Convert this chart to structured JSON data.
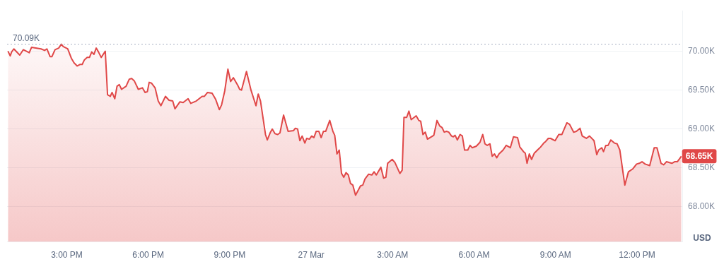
{
  "chart_data": {
    "type": "area",
    "ylabel": "USD",
    "xlim": [
      "--03-26T12:48",
      "--03-27T13:40"
    ],
    "ylim": [
      67.55,
      70.52
    ],
    "xticks": [
      {
        "value": "--03-26T15:00",
        "label": "3:00 PM"
      },
      {
        "value": "--03-26T18:00",
        "label": "6:00 PM"
      },
      {
        "value": "--03-26T21:00",
        "label": "9:00 PM"
      },
      {
        "value": "--03-27T00:00",
        "label": "27 Mar"
      },
      {
        "value": "--03-27T03:00",
        "label": "3:00 AM"
      },
      {
        "value": "--03-27T06:00",
        "label": "6:00 AM"
      },
      {
        "value": "--03-27T09:00",
        "label": "9:00 AM"
      },
      {
        "value": "--03-27T12:00",
        "label": "12:00 PM"
      }
    ],
    "yticks": [
      {
        "value": 68,
        "label": "68.00K"
      },
      {
        "value": 68.5,
        "label": "68.50K"
      },
      {
        "value": 69,
        "label": "69.00K"
      },
      {
        "value": 69.5,
        "label": "69.50K"
      },
      {
        "value": 70,
        "label": "70.00K"
      }
    ],
    "grid": "y",
    "marker": "none",
    "line_style": "solid",
    "ref_lines": [
      {
        "axis": "y",
        "value": 70.09,
        "label": "70.09K",
        "line_style": "dotted",
        "color": "#a6b0c3"
      }
    ],
    "annotations": [
      {
        "text": "68.65K",
        "x": "--03-27T13:38",
        "y": 68.65
      }
    ],
    "series": [
      {
        "color": "#e04848",
        "x": [
          "--03-26T12:50",
          "--03-26T12:55",
          "--03-26T12:58",
          "--03-26T13:03",
          "--03-26T13:16",
          "--03-26T13:24",
          "--03-26T13:37",
          "--03-26T13:42",
          "--03-26T14:03",
          "--03-26T14:11",
          "--03-26T14:16",
          "--03-26T14:23",
          "--03-26T14:27",
          "--03-26T14:34",
          "--03-26T14:42",
          "--03-26T14:48",
          "--03-26T14:52",
          "--03-26T15:02",
          "--03-26T15:10",
          "--03-26T15:16",
          "--03-26T15:23",
          "--03-26T15:29",
          "--03-26T15:34",
          "--03-26T15:39",
          "--03-26T15:45",
          "--03-26T15:50",
          "--03-26T15:55",
          "--03-26T16:00",
          "--03-26T16:05",
          "--03-26T16:10",
          "--03-26T16:16",
          "--03-26T16:25",
          "--03-26T16:30",
          "--03-26T16:36",
          "--03-26T16:40",
          "--03-26T16:46",
          "--03-26T16:51",
          "--03-26T16:56",
          "--03-26T17:01",
          "--03-26T17:11",
          "--03-26T17:18",
          "--03-26T17:23",
          "--03-26T17:29",
          "--03-26T17:38",
          "--03-26T17:47",
          "--03-26T17:53",
          "--03-26T17:58",
          "--03-26T18:02",
          "--03-26T18:07",
          "--03-26T18:15",
          "--03-26T18:22",
          "--03-26T18:28",
          "--03-26T18:38",
          "--03-26T18:46",
          "--03-26T18:54",
          "--03-26T18:59",
          "--03-26T19:10",
          "--03-26T19:17",
          "--03-26T19:28",
          "--03-26T19:34",
          "--03-26T19:46",
          "--03-26T19:59",
          "--03-26T20:04",
          "--03-26T20:11",
          "--03-26T20:21",
          "--03-26T20:29",
          "--03-26T20:37",
          "--03-26T20:42",
          "--03-26T20:49",
          "--03-26T20:56",
          "--03-26T21:02",
          "--03-26T21:08",
          "--03-26T21:17",
          "--03-26T21:22",
          "--03-26T21:26",
          "--03-26T21:37",
          "--03-26T21:47",
          "--03-26T21:58",
          "--03-26T22:03",
          "--03-26T22:08",
          "--03-26T22:19",
          "--03-26T22:23",
          "--03-26T22:30",
          "--03-26T22:34",
          "--03-26T22:40",
          "--03-26T22:46",
          "--03-26T22:51",
          "--03-26T22:59",
          "--03-26T23:09",
          "--03-26T23:21",
          "--03-26T23:25",
          "--03-26T23:30",
          "--03-26T23:35",
          "--03-26T23:40",
          "--03-26T23:46",
          "--03-26T23:50",
          "--03-26T23:56",
          "--03-27T00:01",
          "--03-27T00:06",
          "--03-27T00:11",
          "--03-27T00:17",
          "--03-27T00:22",
          "--03-27T00:27",
          "--03-27T00:32",
          "--03-27T00:41",
          "--03-27T00:48",
          "--03-27T00:52",
          "--03-27T00:57",
          "--03-27T01:02",
          "--03-27T01:07",
          "--03-27T01:12",
          "--03-27T01:17",
          "--03-27T01:22",
          "--03-27T01:27",
          "--03-27T01:32",
          "--03-27T01:38",
          "--03-27T01:49",
          "--03-27T01:54",
          "--03-27T01:59",
          "--03-27T02:07",
          "--03-27T02:14",
          "--03-27T02:19",
          "--03-27T02:24",
          "--03-27T02:34",
          "--03-27T02:40",
          "--03-27T02:45",
          "--03-27T02:49",
          "--03-27T02:59",
          "--03-27T03:05",
          "--03-27T03:16",
          "--03-27T03:21",
          "--03-27T03:25",
          "--03-27T03:31",
          "--03-27T03:36",
          "--03-27T03:41",
          "--03-27T03:52",
          "--03-27T03:58",
          "--03-27T04:02",
          "--03-27T04:07",
          "--03-27T04:12",
          "--03-27T04:17",
          "--03-27T04:31",
          "--03-27T04:38",
          "--03-27T04:44",
          "--03-27T04:49",
          "--03-27T04:54",
          "--03-27T04:59",
          "--03-27T05:04",
          "--03-27T05:10",
          "--03-27T05:14",
          "--03-27T05:18",
          "--03-27T05:23",
          "--03-27T05:29",
          "--03-27T05:34",
          "--03-27T05:39",
          "--03-27T05:46",
          "--03-27T05:51",
          "--03-27T05:56",
          "--03-27T06:05",
          "--03-27T06:13",
          "--03-27T06:19",
          "--03-27T06:24",
          "--03-27T06:29",
          "--03-27T06:35",
          "--03-27T06:40",
          "--03-27T06:45",
          "--03-27T06:50",
          "--03-27T06:55",
          "--03-27T07:04",
          "--03-27T07:11",
          "--03-27T07:20",
          "--03-27T07:27",
          "--03-27T07:36",
          "--03-27T07:41",
          "--03-27T07:49",
          "--03-27T07:53",
          "--03-27T07:57",
          "--03-27T08:02",
          "--03-27T08:07",
          "--03-27T08:13",
          "--03-27T08:20",
          "--03-27T08:27",
          "--03-27T08:34",
          "--03-27T08:38",
          "--03-27T08:44",
          "--03-27T08:49",
          "--03-27T08:59",
          "--03-27T09:07",
          "--03-27T09:14",
          "--03-27T09:25",
          "--03-27T09:31",
          "--03-27T09:40",
          "--03-27T09:46",
          "--03-27T09:54",
          "--03-27T09:59",
          "--03-27T10:08",
          "--03-27T10:15",
          "--03-27T10:25",
          "--03-27T10:31",
          "--03-27T10:35",
          "--03-27T10:42",
          "--03-27T10:46",
          "--03-27T10:51",
          "--03-27T10:56",
          "--03-27T11:02",
          "--03-27T11:10",
          "--03-27T11:16",
          "--03-27T11:22",
          "--03-27T11:33",
          "--03-27T11:41",
          "--03-27T11:51",
          "--03-27T11:59",
          "--03-27T12:05",
          "--03-27T12:11",
          "--03-27T12:18",
          "--03-27T12:28",
          "--03-27T12:38",
          "--03-27T12:44",
          "--03-27T12:53",
          "--03-27T12:59",
          "--03-27T13:05",
          "--03-27T13:17",
          "--03-27T13:23",
          "--03-27T13:29",
          "--03-27T13:38"
        ],
        "values": [
          70.0,
          69.94,
          69.99,
          70.03,
          69.95,
          70.02,
          69.98,
          70.05,
          70.03,
          70.01,
          70.03,
          69.93,
          69.93,
          70.02,
          70.04,
          70.09,
          70.06,
          70.03,
          69.91,
          69.85,
          69.81,
          69.83,
          69.83,
          69.89,
          69.92,
          69.92,
          69.99,
          69.96,
          70.04,
          69.99,
          69.92,
          70.0,
          69.44,
          69.42,
          69.47,
          69.39,
          69.55,
          69.57,
          69.51,
          69.55,
          69.64,
          69.65,
          69.62,
          69.51,
          69.53,
          69.47,
          69.48,
          69.6,
          69.59,
          69.53,
          69.36,
          69.3,
          69.42,
          69.37,
          69.36,
          69.26,
          69.35,
          69.34,
          69.39,
          69.33,
          69.36,
          69.42,
          69.42,
          69.47,
          69.46,
          69.38,
          69.25,
          69.31,
          69.49,
          69.77,
          69.61,
          69.66,
          69.57,
          69.51,
          69.5,
          69.74,
          69.5,
          69.3,
          69.45,
          69.36,
          68.93,
          68.86,
          68.96,
          69.0,
          68.94,
          68.93,
          68.95,
          69.18,
          68.97,
          68.98,
          69.01,
          69.0,
          68.85,
          68.91,
          68.82,
          68.88,
          68.87,
          68.91,
          68.89,
          68.97,
          68.97,
          68.89,
          68.97,
          68.97,
          69.11,
          68.97,
          68.92,
          68.68,
          68.73,
          68.43,
          68.38,
          68.44,
          68.41,
          68.3,
          68.28,
          68.15,
          68.27,
          68.28,
          68.36,
          68.42,
          68.41,
          68.45,
          68.41,
          68.51,
          68.37,
          68.38,
          68.56,
          68.61,
          68.57,
          68.43,
          68.47,
          69.15,
          69.15,
          69.23,
          69.12,
          69.17,
          69.11,
          69.1,
          68.93,
          68.96,
          68.87,
          68.92,
          69.11,
          69.04,
          69.02,
          68.96,
          68.97,
          68.96,
          68.91,
          68.9,
          68.92,
          68.86,
          68.93,
          68.91,
          68.73,
          68.73,
          68.79,
          68.76,
          68.78,
          68.83,
          68.93,
          68.81,
          68.79,
          68.81,
          68.65,
          68.68,
          68.63,
          68.68,
          68.73,
          68.79,
          68.76,
          68.9,
          68.89,
          68.77,
          68.71,
          68.69,
          68.56,
          68.68,
          68.61,
          68.69,
          68.73,
          68.77,
          68.82,
          68.84,
          68.88,
          68.88,
          68.85,
          68.93,
          68.93,
          69.08,
          69.06,
          68.96,
          68.97,
          69.01,
          68.91,
          68.88,
          68.91,
          68.85,
          68.67,
          68.73,
          68.76,
          68.71,
          68.79,
          68.79,
          68.86,
          68.82,
          68.81,
          68.73,
          68.28,
          68.45,
          68.49,
          68.55,
          68.56,
          68.58,
          68.55,
          68.53,
          68.76,
          68.76,
          68.56,
          68.54,
          68.58,
          68.56,
          68.58,
          68.58,
          68.65
        ]
      }
    ]
  }
}
